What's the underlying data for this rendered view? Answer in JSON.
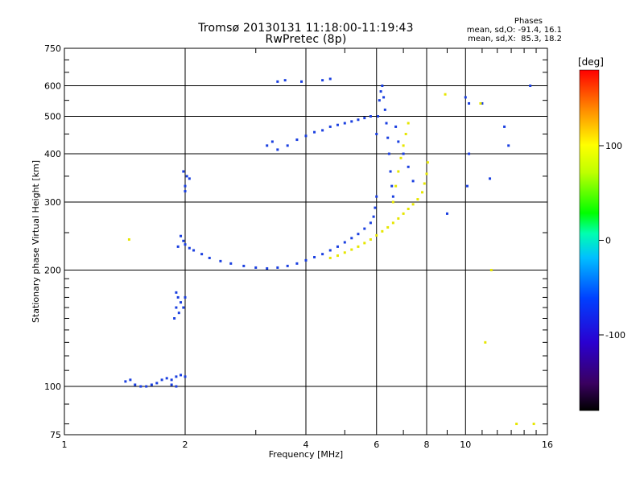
{
  "header": {
    "title_line_1": "Tromsø 20130131 11:18:00-11:19:43",
    "title_line_2": "RwPretec (8p)"
  },
  "stats": {
    "heading": "Phases",
    "o_mode": "mean, sd,O: -91.4, 16.1",
    "x_mode": "mean, sd,X:  85.3, 18.2"
  },
  "colorbar": {
    "label": "[deg]",
    "ticks": [
      {
        "value": 100,
        "label": "100"
      },
      {
        "value": 0,
        "label": "0"
      },
      {
        "value": -100,
        "label": "-100"
      }
    ],
    "range": [
      -180,
      180
    ],
    "colormap": "rainbow (black-purple-blue-cyan-green-yellow-orange-red)"
  },
  "chart_data": {
    "type": "scatter",
    "title": "Tromsø 20130131 11:18:00-11:19:43",
    "subtitle": "RwPretec (8p)",
    "xlabel": "Frequency [MHz]",
    "ylabel": "Stationary phase Virtual Height [km]",
    "x_scale": "log",
    "y_scale": "log",
    "xlim": [
      1,
      16
    ],
    "ylim": [
      75,
      750
    ],
    "x_ticks": [
      1,
      2,
      4,
      6,
      8,
      10,
      16
    ],
    "y_ticks": [
      75,
      100,
      200,
      300,
      400,
      500,
      600,
      750
    ],
    "grid": true,
    "colors": {
      "o_mode": "#1a3fe0",
      "x_mode": "#e6e600"
    },
    "series": [
      {
        "mode": "O",
        "color_key": "o_mode",
        "points": [
          [
            1.42,
            103
          ],
          [
            1.46,
            104
          ],
          [
            1.5,
            101
          ],
          [
            1.55,
            100
          ],
          [
            1.6,
            100
          ],
          [
            1.65,
            101
          ],
          [
            1.7,
            102
          ],
          [
            1.75,
            104
          ],
          [
            1.8,
            105
          ],
          [
            1.85,
            104
          ],
          [
            1.9,
            106
          ],
          [
            1.95,
            107
          ],
          [
            2.0,
            106
          ],
          [
            1.85,
            101
          ],
          [
            1.9,
            100
          ],
          [
            1.88,
            150
          ],
          [
            1.9,
            160
          ],
          [
            1.92,
            170
          ],
          [
            1.95,
            165
          ],
          [
            1.98,
            160
          ],
          [
            2.0,
            170
          ],
          [
            1.9,
            175
          ],
          [
            1.93,
            155
          ],
          [
            1.92,
            230
          ],
          [
            1.95,
            245
          ],
          [
            1.98,
            238
          ],
          [
            2.0,
            233
          ],
          [
            2.05,
            228
          ],
          [
            2.1,
            225
          ],
          [
            2.2,
            220
          ],
          [
            2.3,
            215
          ],
          [
            2.45,
            211
          ],
          [
            2.6,
            208
          ],
          [
            2.8,
            205
          ],
          [
            3.0,
            203
          ],
          [
            3.2,
            202
          ],
          [
            3.4,
            203
          ],
          [
            3.6,
            205
          ],
          [
            3.8,
            208
          ],
          [
            4.0,
            212
          ],
          [
            4.2,
            216
          ],
          [
            4.4,
            220
          ],
          [
            4.6,
            225
          ],
          [
            4.8,
            230
          ],
          [
            5.0,
            236
          ],
          [
            5.2,
            242
          ],
          [
            5.4,
            248
          ],
          [
            5.6,
            256
          ],
          [
            5.8,
            265
          ],
          [
            5.9,
            275
          ],
          [
            5.95,
            290
          ],
          [
            6.0,
            310
          ],
          [
            2.0,
            330
          ],
          [
            2.02,
            350
          ],
          [
            2.05,
            345
          ],
          [
            1.98,
            360
          ],
          [
            2.0,
            320
          ],
          [
            3.2,
            420
          ],
          [
            3.3,
            430
          ],
          [
            3.4,
            410
          ],
          [
            3.6,
            420
          ],
          [
            3.8,
            435
          ],
          [
            4.0,
            445
          ],
          [
            4.2,
            455
          ],
          [
            4.4,
            460
          ],
          [
            4.6,
            470
          ],
          [
            4.8,
            475
          ],
          [
            5.0,
            480
          ],
          [
            5.2,
            485
          ],
          [
            5.4,
            490
          ],
          [
            5.6,
            495
          ],
          [
            5.8,
            500
          ],
          [
            3.4,
            615
          ],
          [
            3.55,
            620
          ],
          [
            3.9,
            615
          ],
          [
            4.4,
            620
          ],
          [
            4.6,
            625
          ],
          [
            6.0,
            450
          ],
          [
            6.05,
            500
          ],
          [
            6.1,
            550
          ],
          [
            6.15,
            580
          ],
          [
            6.2,
            600
          ],
          [
            6.25,
            560
          ],
          [
            6.3,
            520
          ],
          [
            6.35,
            480
          ],
          [
            6.4,
            440
          ],
          [
            6.45,
            400
          ],
          [
            6.5,
            360
          ],
          [
            6.55,
            330
          ],
          [
            6.6,
            310
          ],
          [
            6.7,
            470
          ],
          [
            6.8,
            430
          ],
          [
            7.0,
            400
          ],
          [
            7.2,
            370
          ],
          [
            7.4,
            340
          ],
          [
            10.0,
            560
          ],
          [
            10.2,
            540
          ],
          [
            11.0,
            540
          ],
          [
            12.5,
            470
          ],
          [
            12.8,
            420
          ],
          [
            14.5,
            600
          ],
          [
            10.2,
            400
          ],
          [
            10.1,
            330
          ],
          [
            11.5,
            345
          ],
          [
            9.0,
            280
          ]
        ]
      },
      {
        "mode": "X",
        "color_key": "x_mode",
        "points": [
          [
            4.6,
            215
          ],
          [
            4.8,
            218
          ],
          [
            5.0,
            222
          ],
          [
            5.2,
            226
          ],
          [
            5.4,
            230
          ],
          [
            5.6,
            235
          ],
          [
            5.8,
            240
          ],
          [
            6.0,
            246
          ],
          [
            6.2,
            252
          ],
          [
            6.4,
            258
          ],
          [
            6.6,
            265
          ],
          [
            6.8,
            272
          ],
          [
            7.0,
            280
          ],
          [
            7.2,
            288
          ],
          [
            7.4,
            296
          ],
          [
            7.6,
            305
          ],
          [
            7.8,
            318
          ],
          [
            7.9,
            335
          ],
          [
            8.0,
            355
          ],
          [
            8.05,
            380
          ],
          [
            6.6,
            300
          ],
          [
            6.7,
            330
          ],
          [
            6.8,
            360
          ],
          [
            6.9,
            390
          ],
          [
            7.0,
            420
          ],
          [
            7.1,
            450
          ],
          [
            7.2,
            480
          ],
          [
            1.45,
            240
          ],
          [
            8.9,
            570
          ],
          [
            10.9,
            540
          ],
          [
            11.6,
            200
          ],
          [
            11.2,
            130
          ],
          [
            13.4,
            80
          ],
          [
            14.8,
            80
          ]
        ]
      }
    ]
  }
}
